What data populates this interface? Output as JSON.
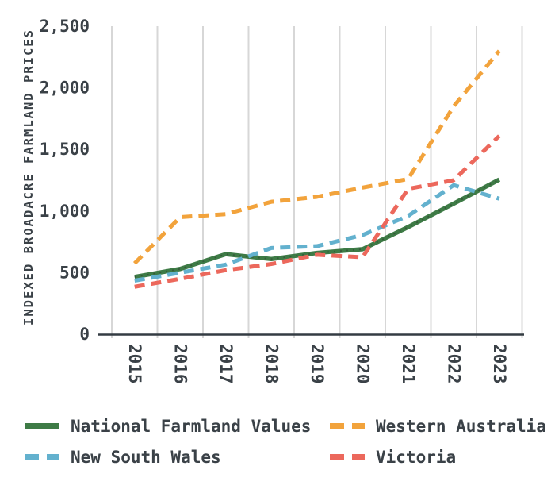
{
  "chart": {
    "y_axis_title": "INDEXED BROADACRE FARMLAND PRICES"
  },
  "theme": {
    "background": "#FFFFFF",
    "text_color": "#3A4147",
    "gridline_color": "#D7D7D7",
    "axis_color": "#343C43"
  },
  "chart_data": {
    "type": "line",
    "title": "",
    "xlabel": "",
    "ylabel": "INDEXED BROADACRE FARMLAND PRICES",
    "categories": [
      "2015",
      "2016",
      "2017",
      "2018",
      "2019",
      "2020",
      "2021",
      "2022",
      "2023"
    ],
    "series": [
      {
        "name": "National Farmland Values",
        "color": "#3E7B46",
        "line_style": "solid",
        "values": [
          465,
          530,
          650,
          610,
          660,
          690,
          870,
          1060,
          1255
        ]
      },
      {
        "name": "Western Australia",
        "color": "#F2A33C",
        "line_style": "dashed",
        "values": [
          575,
          950,
          975,
          1075,
          1115,
          1190,
          1260,
          1850,
          2300
        ]
      },
      {
        "name": "New South Wales",
        "color": "#63B1CE",
        "line_style": "dashed",
        "values": [
          435,
          500,
          565,
          700,
          715,
          805,
          960,
          1210,
          1100
        ]
      },
      {
        "name": "Victoria",
        "color": "#EC685C",
        "line_style": "dashed",
        "values": [
          385,
          450,
          520,
          570,
          645,
          625,
          1180,
          1250,
          1610
        ]
      }
    ],
    "ylim": [
      0,
      2500
    ],
    "yticks": [
      {
        "value": 0,
        "label": "0"
      },
      {
        "value": 500,
        "label": "500"
      },
      {
        "value": 1000,
        "label": "1,000"
      },
      {
        "value": 1500,
        "label": "1,500"
      },
      {
        "value": 2000,
        "label": "2,000"
      },
      {
        "value": 2500,
        "label": "2,500"
      }
    ],
    "grid": "vertical-only",
    "x_tick_rotation": 90,
    "legend_position": "bottom-two-columns"
  }
}
